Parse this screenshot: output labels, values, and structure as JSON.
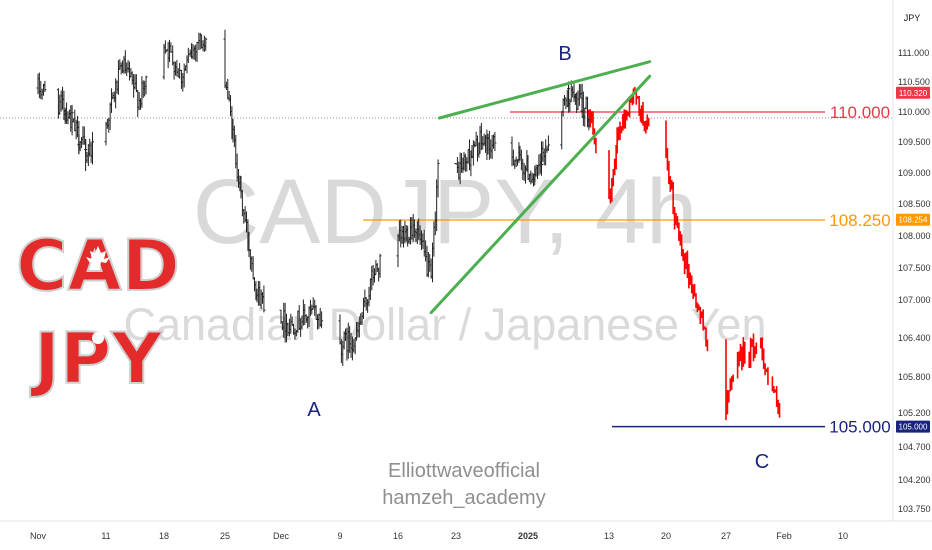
{
  "chart_data": {
    "type": "candlestick",
    "currency_label": "JPY",
    "watermark_symbol": "CADJPY, 4h",
    "watermark_name": "Canadian Dollar / Japanese Yen",
    "logo_text": [
      "CAD",
      "JPY"
    ],
    "credits": [
      "Elliottwaveofficial",
      "hamzeh_academy"
    ],
    "wave_labels": [
      {
        "text": "A",
        "color": "#1a237e"
      },
      {
        "text": "B",
        "color": "#1a237e"
      },
      {
        "text": "C",
        "color": "#1a237e"
      }
    ],
    "levels": [
      {
        "value": 110.0,
        "label": "110.000",
        "color": "#f23645"
      },
      {
        "value": 108.25,
        "label": "108.250",
        "color": "#ff9800"
      },
      {
        "value": 105.0,
        "label": "105.000",
        "color": "#1a237e"
      }
    ],
    "price_tags": [
      {
        "value": 110.32,
        "label": "110.320",
        "color": "#f23645"
      },
      {
        "value": 108.254,
        "label": "108.254",
        "color": "#ff9800"
      },
      {
        "value": 105.0,
        "label": "105.000",
        "color": "#1a237e"
      }
    ],
    "y_ticks": [
      "111.000",
      "110.500",
      "110.000",
      "109.500",
      "109.000",
      "108.500",
      "108.000",
      "107.500",
      "107.000",
      "106.400",
      "105.800",
      "105.200",
      "104.700",
      "104.200",
      "103.750"
    ],
    "x_ticks": [
      {
        "label": "Nov",
        "bold": false
      },
      {
        "label": "11",
        "bold": false
      },
      {
        "label": "18",
        "bold": false
      },
      {
        "label": "25",
        "bold": false
      },
      {
        "label": "Dec",
        "bold": false
      },
      {
        "label": "9",
        "bold": false
      },
      {
        "label": "16",
        "bold": false
      },
      {
        "label": "23",
        "bold": false
      },
      {
        "label": "2025",
        "bold": true
      },
      {
        "label": "13",
        "bold": false
      },
      {
        "label": "20",
        "bold": false
      },
      {
        "label": "27",
        "bold": false
      },
      {
        "label": "Feb",
        "bold": false
      },
      {
        "label": "10",
        "bold": false
      }
    ],
    "historical_path": [
      {
        "date": "2024-11-01",
        "price": 110.4
      },
      {
        "date": "2024-11-05",
        "price": 110.05
      },
      {
        "date": "2024-11-08",
        "price": 109.3
      },
      {
        "date": "2024-11-11",
        "price": 109.8
      },
      {
        "date": "2024-11-13",
        "price": 110.8
      },
      {
        "date": "2024-11-15",
        "price": 110.2
      },
      {
        "date": "2024-11-18",
        "price": 111.2
      },
      {
        "date": "2024-11-20",
        "price": 110.6
      },
      {
        "date": "2024-11-22",
        "price": 111.25
      },
      {
        "date": "2024-11-25",
        "price": 110.6
      },
      {
        "date": "2024-11-27",
        "price": 108.6
      },
      {
        "date": "2024-11-29",
        "price": 107.1
      },
      {
        "date": "2024-12-03",
        "price": 106.6
      },
      {
        "date": "2024-12-06",
        "price": 106.8
      },
      {
        "date": "2024-12-09",
        "price": 106.3
      },
      {
        "date": "2024-12-11",
        "price": 106.4
      },
      {
        "date": "2024-12-13",
        "price": 107.4
      },
      {
        "date": "2024-12-16",
        "price": 107.9
      },
      {
        "date": "2024-12-18",
        "price": 108.2
      },
      {
        "date": "2024-12-20",
        "price": 107.3
      },
      {
        "date": "2024-12-21",
        "price": 109.5
      },
      {
        "date": "2024-12-23",
        "price": 109.0
      },
      {
        "date": "2024-12-26",
        "price": 109.5
      },
      {
        "date": "2024-12-30",
        "price": 109.3
      },
      {
        "date": "2025-01-02",
        "price": 108.9
      },
      {
        "date": "2025-01-05",
        "price": 109.9
      },
      {
        "date": "2025-01-07",
        "price": 110.3
      },
      {
        "date": "2025-01-10",
        "price": 110.0
      }
    ],
    "projected_path": [
      {
        "date": "2025-01-10",
        "price": 110.0
      },
      {
        "date": "2025-01-11",
        "price": 109.3
      },
      {
        "date": "2025-01-13",
        "price": 108.5
      },
      {
        "date": "2025-01-14",
        "price": 109.6
      },
      {
        "date": "2025-01-16",
        "price": 110.3
      },
      {
        "date": "2025-01-18",
        "price": 109.6
      },
      {
        "date": "2025-01-20",
        "price": 109.2
      },
      {
        "date": "2025-01-21",
        "price": 108.3
      },
      {
        "date": "2025-01-23",
        "price": 107.2
      },
      {
        "date": "2025-01-25",
        "price": 106.3
      },
      {
        "date": "2025-01-27",
        "price": 105.2
      },
      {
        "date": "2025-01-28",
        "price": 106.1
      },
      {
        "date": "2025-01-30",
        "price": 106.3
      },
      {
        "date": "2025-02-01",
        "price": 105.0
      }
    ],
    "trendlines": [
      {
        "from": {
          "date": "2024-12-21",
          "price": 109.9
        },
        "to": {
          "date": "2025-01-18",
          "price": 110.85
        },
        "color": "#4caf50"
      },
      {
        "from": {
          "date": "2024-12-20",
          "price": 106.8
        },
        "to": {
          "date": "2025-01-18",
          "price": 110.6
        },
        "color": "#4caf50"
      }
    ],
    "reference_price": 109.9,
    "colors": {
      "up": "#26a69a",
      "projection": "#ff0000",
      "bars": "#222222"
    }
  }
}
